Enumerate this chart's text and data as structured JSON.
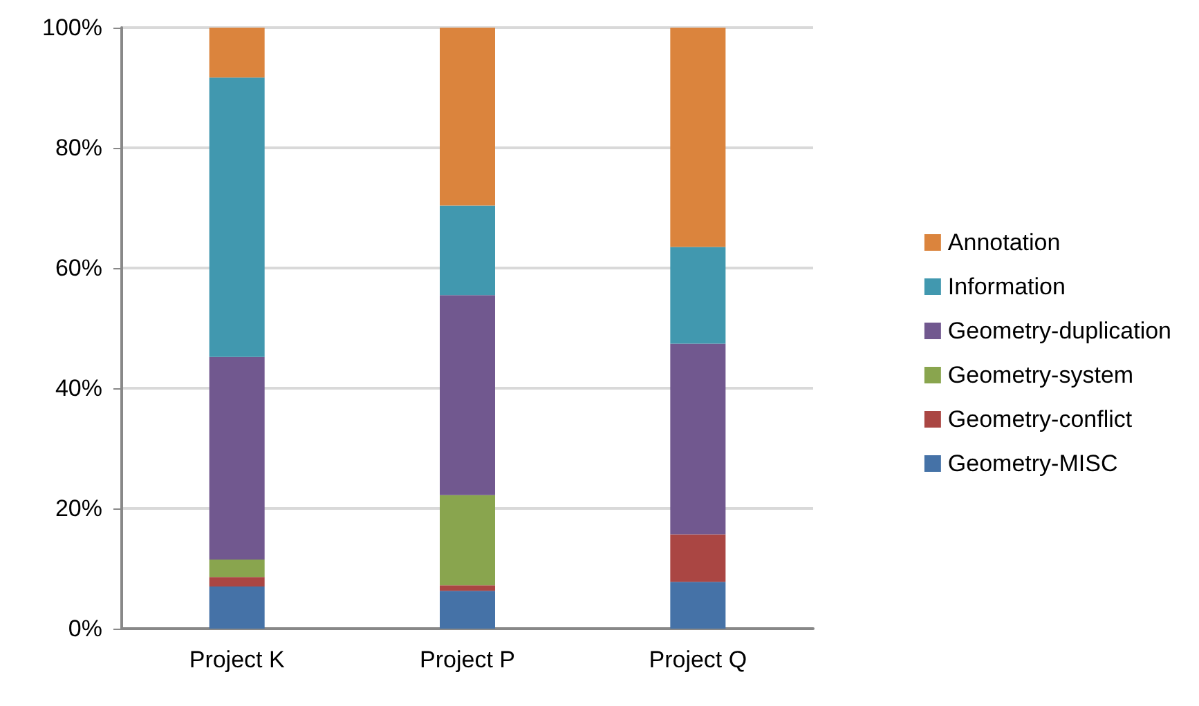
{
  "chart_data": {
    "type": "bar",
    "stacked": true,
    "categories": [
      "Project K",
      "Project P",
      "Project Q"
    ],
    "series": [
      {
        "name": "Geometry-MISC",
        "color": "#4572a7",
        "values": [
          7,
          6.3,
          7.8
        ]
      },
      {
        "name": "Geometry-conflict",
        "color": "#aa4643",
        "values": [
          1.6,
          0.9,
          7.9
        ]
      },
      {
        "name": "Geometry-system",
        "color": "#89a54e",
        "values": [
          2.9,
          15,
          0
        ]
      },
      {
        "name": "Geometry-duplication",
        "color": "#71588f",
        "values": [
          33.7,
          33.3,
          31.7
        ]
      },
      {
        "name": "Information",
        "color": "#4198af",
        "values": [
          46.5,
          14.9,
          16.1
        ]
      },
      {
        "name": "Annotation",
        "color": "#db843d",
        "values": [
          8.3,
          29.6,
          36.5
        ]
      }
    ],
    "ylim": [
      0,
      100
    ],
    "yticks": [
      {
        "value": 0,
        "label": "0%"
      },
      {
        "value": 20,
        "label": "20%"
      },
      {
        "value": 40,
        "label": "40%"
      },
      {
        "value": 60,
        "label": "60%"
      },
      {
        "value": 80,
        "label": "80%"
      },
      {
        "value": 100,
        "label": "100%"
      }
    ],
    "grid": "y",
    "legend": "right"
  }
}
